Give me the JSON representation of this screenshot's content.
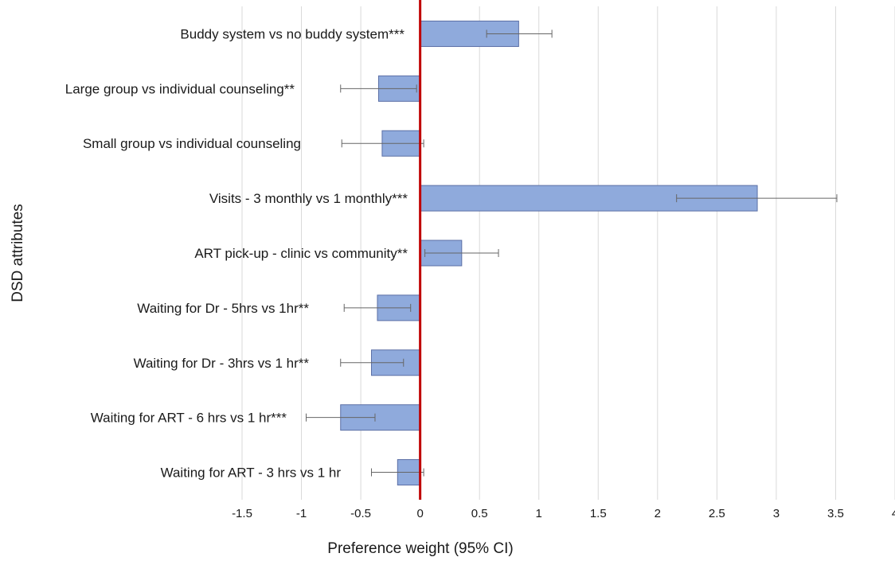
{
  "chart_data": {
    "type": "bar",
    "orientation": "horizontal",
    "title": "",
    "xlabel": "Preference weight (95% CI)",
    "ylabel": "DSD attributes",
    "xlim": [
      -1.5,
      4
    ],
    "xticks": [
      "-1.5",
      "-1",
      "-0.5",
      "0",
      "0.5",
      "1",
      "1.5",
      "2",
      "2.5",
      "3",
      "3.5",
      "4"
    ],
    "grid": "vertical",
    "legend": "none",
    "categories": [
      "Buddy system vs no buddy system***",
      "Large group vs individual counseling**",
      "Small group vs individual counseling",
      "Visits - 3 monthly vs 1 monthly***",
      "ART pick-up - clinic vs community**",
      "Waiting for Dr - 5hrs vs 1hr**",
      "Waiting for Dr - 3hrs vs 1 hr**",
      "Waiting for ART - 6 hrs vs 1 hr***",
      "Waiting for ART - 3 hrs vs 1 hr"
    ],
    "values": [
      0.83,
      -0.35,
      -0.32,
      2.84,
      0.35,
      -0.36,
      -0.41,
      -0.67,
      -0.19
    ],
    "ci_low": [
      0.56,
      -0.67,
      -0.66,
      2.16,
      0.04,
      -0.64,
      -0.67,
      -0.96,
      -0.41
    ],
    "ci_high": [
      1.11,
      -0.03,
      0.03,
      3.51,
      0.66,
      -0.08,
      -0.14,
      -0.38,
      0.03
    ],
    "colors": {
      "bar_fill": "#8faadc",
      "bar_edge": "#5b6fa6",
      "zero_line": "#c00000",
      "grid": "#d9d9d9",
      "error_bar": "#666666"
    }
  }
}
